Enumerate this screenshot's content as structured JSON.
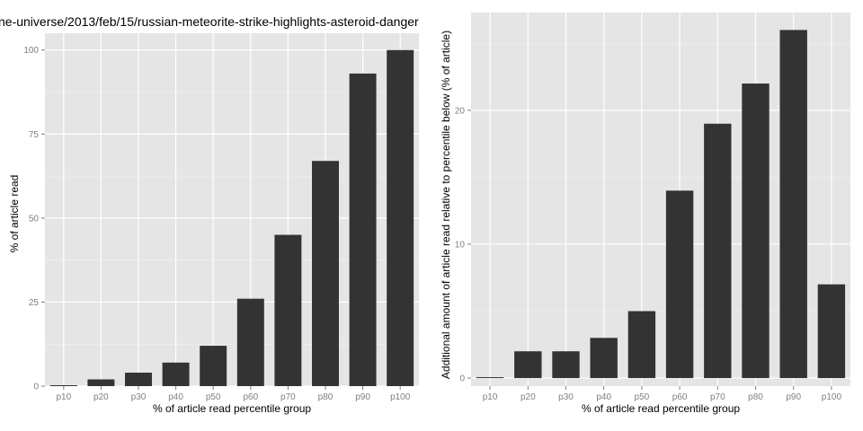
{
  "chart_data": [
    {
      "type": "bar",
      "title": "ne-universe/2013/feb/15/russian-meteorite-strike-highlights-asteroid-danger",
      "xlabel": "% of article read percentile group",
      "ylabel": "% of article read",
      "categories": [
        "p10",
        "p20",
        "p30",
        "p40",
        "p50",
        "p60",
        "p70",
        "p80",
        "p90",
        "p100"
      ],
      "values": [
        0,
        2,
        4,
        7,
        12,
        26,
        45,
        67,
        93,
        100
      ],
      "ylim": [
        0,
        105
      ],
      "yticks": [
        0,
        25,
        50,
        75,
        100
      ],
      "grid": true,
      "bar_color": "#333333"
    },
    {
      "type": "bar",
      "title": "",
      "xlabel": "% of article read percentile group",
      "ylabel": "Additional amount of article read relative to percentile below (% of article)",
      "categories": [
        "p10",
        "p20",
        "p30",
        "p40",
        "p50",
        "p60",
        "p70",
        "p80",
        "p90",
        "p100"
      ],
      "values": [
        0,
        2,
        2,
        3,
        5,
        14,
        19,
        22,
        26,
        7
      ],
      "ylim": [
        -0.6,
        27.3
      ],
      "yticks": [
        0,
        10,
        20
      ],
      "grid": true,
      "bar_color": "#333333"
    }
  ]
}
